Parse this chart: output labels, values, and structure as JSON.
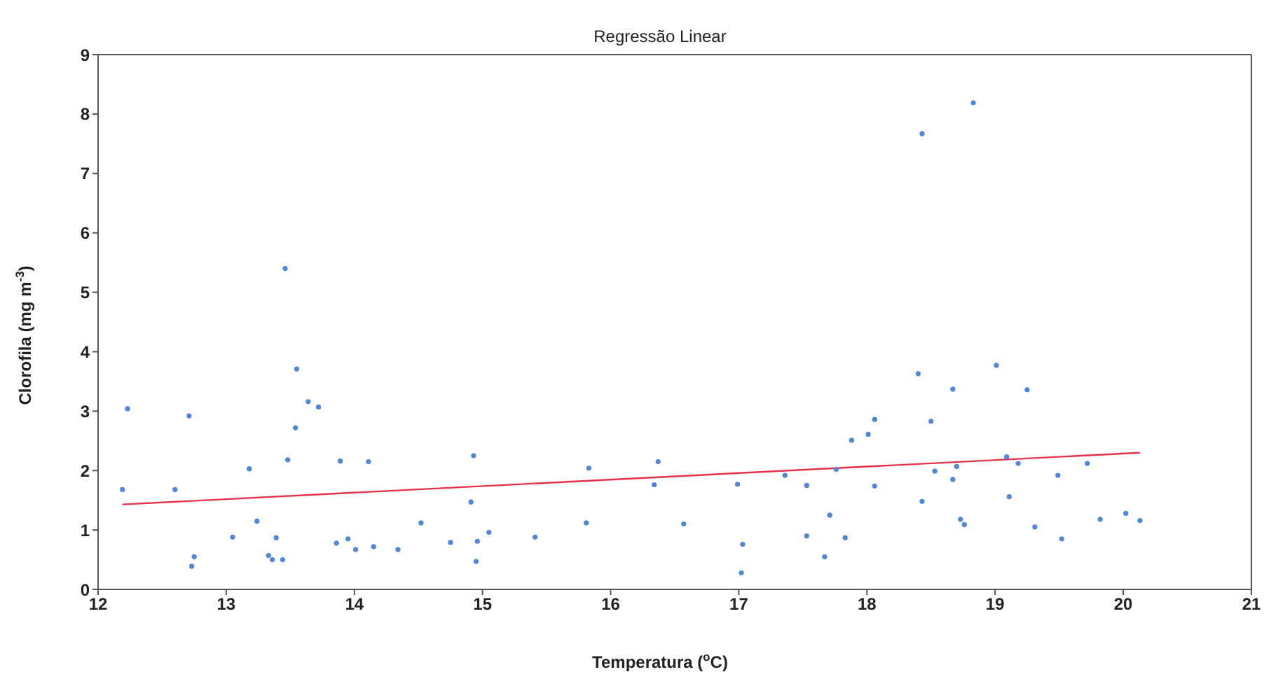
{
  "chart_data": {
    "type": "scatter",
    "title": "Regressão Linear",
    "xlabel": "Temperatura ($^{o}$C)",
    "ylabel": "Clorofila (mg m$^{-3}$)",
    "xlim": [
      12,
      21
    ],
    "xticks": [
      12,
      13,
      14,
      15,
      16,
      17,
      18,
      19,
      20,
      21
    ],
    "ylim": [
      0,
      9
    ],
    "yticks": [
      0,
      1,
      2,
      3,
      4,
      5,
      6,
      7,
      8,
      9
    ],
    "marker": "circle",
    "series": [
      {
        "color": "#4f86d8",
        "x": [
          12.19,
          12.23,
          12.6,
          12.71,
          12.73,
          12.75,
          13.05,
          13.18,
          13.24,
          13.33,
          13.36,
          13.39,
          13.44,
          13.46,
          13.48,
          13.54,
          13.55,
          13.64,
          13.72,
          13.86,
          13.89,
          13.95,
          14.01,
          14.11,
          14.15,
          14.34,
          14.52,
          14.75,
          14.91,
          14.93,
          14.95,
          14.96,
          15.05,
          15.41,
          15.81,
          15.83,
          16.34,
          16.37,
          16.57,
          16.99,
          17.03,
          17.02,
          17.36,
          17.53,
          17.53,
          17.67,
          17.71,
          17.76,
          17.83,
          17.88,
          18.01,
          18.06,
          18.06,
          18.43,
          18.83,
          18.4,
          18.5,
          18.67,
          19.01,
          19.25,
          18.43,
          18.53,
          18.67,
          18.7,
          18.73,
          18.76,
          19.09,
          19.11,
          19.18,
          19.31,
          19.49,
          19.52,
          19.72,
          19.82,
          20.02,
          20.13
        ],
        "values": [
          1.68,
          3.04,
          1.68,
          2.92,
          0.39,
          0.55,
          0.88,
          2.03,
          1.15,
          0.57,
          0.5,
          0.87,
          0.5,
          5.4,
          2.18,
          2.72,
          3.71,
          3.16,
          3.07,
          0.78,
          2.16,
          0.85,
          0.67,
          2.15,
          0.72,
          0.67,
          1.12,
          0.79,
          1.47,
          2.25,
          0.47,
          0.81,
          0.96,
          0.88,
          1.12,
          2.04,
          1.76,
          2.15,
          1.1,
          1.77,
          0.76,
          0.28,
          1.92,
          1.75,
          0.9,
          0.55,
          1.25,
          2.02,
          0.87,
          2.51,
          2.61,
          1.74,
          2.86,
          7.67,
          8.19,
          3.63,
          2.83,
          3.37,
          3.77,
          3.36,
          1.48,
          1.99,
          1.85,
          2.07,
          1.18,
          1.09,
          2.23,
          1.56,
          2.12,
          1.05,
          1.92,
          0.85,
          2.12,
          1.18,
          1.28,
          1.16
        ]
      },
      {
        "type": "line",
        "color": "#e8304a",
        "marker": "none",
        "x": [
          12.19,
          20.13
        ],
        "values": [
          1.43,
          2.3
        ]
      }
    ]
  }
}
